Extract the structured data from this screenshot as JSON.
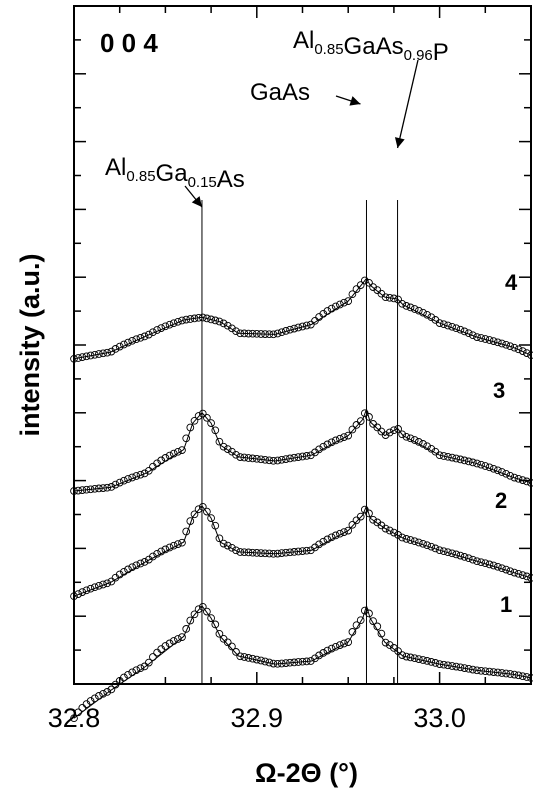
{
  "chart_data": {
    "type": "line",
    "title": "",
    "panel_label": "0 0 4",
    "xlabel": "Ω-2Θ (°)",
    "ylabel": "intensity (a.u.)",
    "xlim": [
      32.8,
      33.05
    ],
    "x_ticks": [
      32.8,
      32.9,
      33.0
    ],
    "x_tick_labels": [
      "32.8",
      "32.9",
      "33.0"
    ],
    "y_scale": "log",
    "y_ticks_shown": false,
    "grid": false,
    "legend": "none",
    "peak_positions": {
      "Al0.85Ga0.15As": 32.87,
      "GaAs": 32.96,
      "Al0.85GaAs0.96P": 32.977
    },
    "annotations": [
      {
        "base": "Al",
        "sub1": "0.85",
        "mid": "Ga",
        "sub2": "0.15",
        "tail": "As",
        "x": 32.87
      },
      {
        "base": "GaAs",
        "x": 32.96
      },
      {
        "base": "Al",
        "sub1": "0.85",
        "mid": "GaAs",
        "sub2": "0.96",
        "tail": "P",
        "x": 32.977
      }
    ],
    "series": [
      {
        "name": "1",
        "x": [
          32.8,
          32.82,
          32.84,
          32.86,
          32.865,
          32.87,
          32.875,
          32.88,
          32.89,
          32.91,
          32.93,
          32.95,
          32.958,
          32.96,
          32.962,
          32.97,
          32.98,
          33.0,
          33.02,
          33.04,
          33.05
        ],
        "y": [
          0.02,
          0.08,
          0.28,
          1.2,
          3.2,
          5.5,
          3.0,
          1.2,
          0.45,
          0.3,
          0.35,
          0.9,
          3.0,
          5.5,
          3.0,
          0.9,
          0.45,
          0.3,
          0.22,
          0.18,
          0.15
        ]
      },
      {
        "name": "2",
        "x": [
          32.8,
          32.82,
          32.84,
          32.86,
          32.865,
          32.87,
          32.875,
          32.88,
          32.89,
          32.91,
          32.93,
          32.95,
          32.958,
          32.96,
          32.962,
          32.97,
          32.98,
          33.0,
          33.02,
          33.04,
          33.05
        ],
        "y": [
          0.06,
          0.12,
          0.35,
          0.9,
          3.2,
          5.5,
          3.0,
          0.9,
          0.55,
          0.5,
          0.6,
          1.6,
          3.5,
          5.5,
          3.0,
          1.8,
          1.1,
          0.6,
          0.35,
          0.2,
          0.15
        ]
      },
      {
        "name": "3",
        "x": [
          32.8,
          32.82,
          32.84,
          32.86,
          32.865,
          32.87,
          32.875,
          32.88,
          32.89,
          32.91,
          32.93,
          32.95,
          32.958,
          32.96,
          32.962,
          32.97,
          32.977,
          32.98,
          33.0,
          33.02,
          33.04,
          33.05
        ],
        "y": [
          0.1,
          0.12,
          0.25,
          0.8,
          3.0,
          5.0,
          3.0,
          1.0,
          0.55,
          0.45,
          0.6,
          1.6,
          3.6,
          6.0,
          3.2,
          1.6,
          2.3,
          1.6,
          0.6,
          0.4,
          0.2,
          0.15
        ]
      },
      {
        "name": "4",
        "x": [
          32.8,
          32.82,
          32.84,
          32.86,
          32.87,
          32.88,
          32.89,
          32.91,
          32.93,
          32.95,
          32.958,
          32.96,
          32.962,
          32.97,
          32.977,
          32.98,
          33.0,
          33.02,
          33.04,
          33.05
        ],
        "y": [
          0.5,
          0.7,
          1.6,
          3.5,
          4.0,
          3.2,
          1.8,
          1.7,
          2.8,
          9.0,
          22.0,
          28.0,
          20.0,
          11.0,
          10.0,
          7.5,
          3.0,
          1.5,
          0.9,
          0.6
        ]
      }
    ]
  }
}
